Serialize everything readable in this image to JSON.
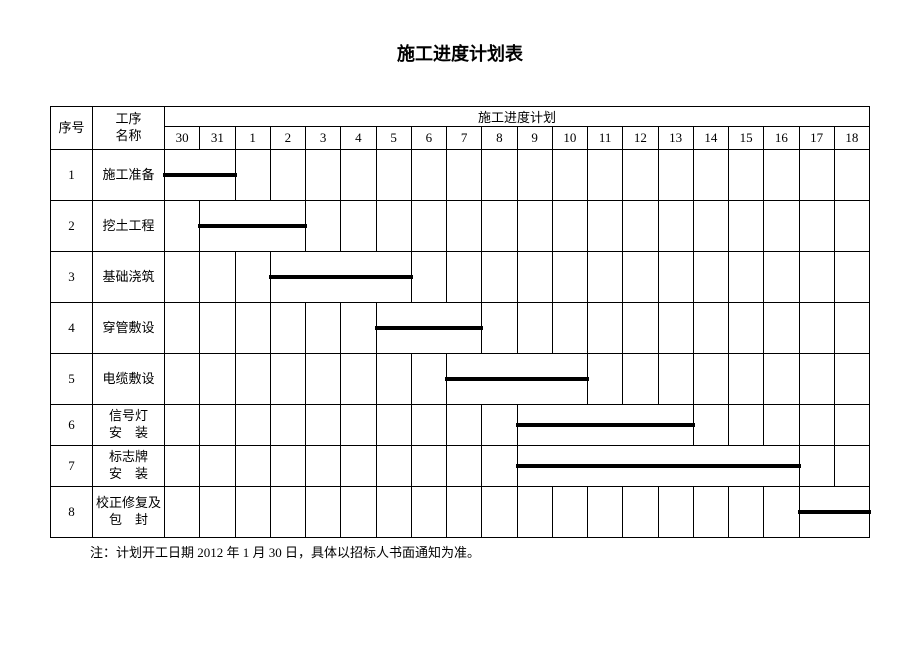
{
  "title": "施工进度计划表",
  "headers": {
    "seq": "序号",
    "name": "工序\n名称",
    "schedule": "施工进度计划"
  },
  "days": [
    "30",
    "31",
    "1",
    "2",
    "3",
    "4",
    "5",
    "6",
    "7",
    "8",
    "9",
    "10",
    "11",
    "12",
    "13",
    "14",
    "15",
    "16",
    "17",
    "18"
  ],
  "tasks": [
    {
      "seq": "1",
      "name": "施工准备",
      "start": 0,
      "span": 2,
      "small": false
    },
    {
      "seq": "2",
      "name": "挖土工程",
      "start": 1,
      "span": 3,
      "small": false
    },
    {
      "seq": "3",
      "name": "基础浇筑",
      "start": 3,
      "span": 4,
      "small": false
    },
    {
      "seq": "4",
      "name": "穿管敷设",
      "start": 6,
      "span": 3,
      "small": false
    },
    {
      "seq": "5",
      "name": "电缆敷设",
      "start": 8,
      "span": 4,
      "small": false
    },
    {
      "seq": "6",
      "name": "信号灯\n安　装",
      "start": 10,
      "span": 5,
      "small": true
    },
    {
      "seq": "7",
      "name": "标志牌\n安　装",
      "start": 10,
      "span": 8,
      "small": true
    },
    {
      "seq": "8",
      "name": "校正修复及\n包　封",
      "start": 18,
      "span": 2,
      "small": false
    }
  ],
  "footnote": "注：计划开工日期 2012 年 1 月 30 日，具体以招标人书面通知为准。",
  "colors": {
    "background": "#ffffff",
    "border": "#000000",
    "bar": "#000000",
    "text": "#000000"
  }
}
